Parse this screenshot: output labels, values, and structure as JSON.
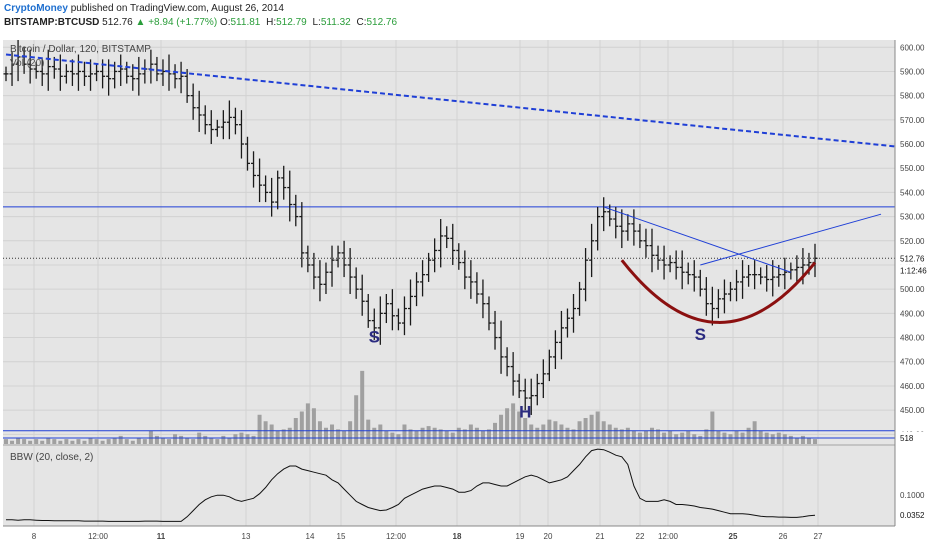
{
  "header": {
    "publisher": "CryptoMoney",
    "published_text": "published on TradingView.com, August 26, 2014",
    "symbol": "BITSTAMP:BTCUSD",
    "last": "512.76",
    "change": "+8.94 (+1.77%)",
    "ohlc": [
      {
        "key": "O:",
        "value": "511.81"
      },
      {
        "key": "H:",
        "value": "512.79"
      },
      {
        "key": "L:",
        "value": "511.32"
      },
      {
        "key": "C:",
        "value": "512.76"
      }
    ]
  },
  "colors": {
    "panel_bg": "#e5e5e5",
    "bars": "#1a1a1a",
    "trendline": "#1f3fd6",
    "cup": "#8b1010",
    "annotation": "#2b2b80",
    "volume": "#a0a0a0"
  },
  "chart_data": [
    {
      "type": "ohlc",
      "title": "Bitcoin / Dollar, 120, BITSTAMP",
      "legend": "Vol (20)",
      "x_tick_labels": [
        "8",
        "12:00",
        "11",
        "13",
        "14",
        "15",
        "12:00",
        "18",
        "19",
        "20",
        "21",
        "22",
        "12:00",
        "25",
        "26",
        "27"
      ],
      "y_tick_labels": [
        "600.00",
        "590.00",
        "580.00",
        "570.00",
        "560.00",
        "550.00",
        "540.00",
        "530.00",
        "520.00",
        "510.00",
        "500.00",
        "490.00",
        "480.00",
        "470.00",
        "460.00",
        "450.00",
        "440.00"
      ],
      "ylim": [
        436,
        603
      ],
      "price_label": "512.76",
      "countdown_label": "1:12:46",
      "volume_label": "518",
      "annotations": [
        {
          "text": "S",
          "x_index": 61,
          "y": 480
        },
        {
          "text": "H",
          "x_index": 86,
          "y": 449
        },
        {
          "text": "S",
          "x_index": 115,
          "y": 481
        }
      ],
      "close_series": [
        589,
        593,
        596,
        593,
        591,
        590,
        589,
        592,
        591,
        588,
        590,
        589,
        590,
        588,
        589,
        590,
        588,
        587,
        590,
        591,
        588,
        587,
        589,
        591,
        593,
        589,
        590,
        589,
        587,
        588,
        580,
        575,
        572,
        568,
        566,
        567,
        569,
        571,
        568,
        560,
        552,
        547,
        543,
        540,
        536,
        546,
        542,
        535,
        530,
        515,
        510,
        505,
        502,
        507,
        512,
        515,
        510,
        505,
        500,
        495,
        487,
        484,
        490,
        494,
        489,
        486,
        492,
        497,
        503,
        506,
        512,
        516,
        522,
        521,
        516,
        511,
        505,
        503,
        498,
        494,
        486,
        480,
        472,
        468,
        462,
        458,
        455,
        456,
        461,
        465,
        472,
        478,
        484,
        488,
        492,
        500,
        512,
        520,
        530,
        532,
        529,
        526,
        524,
        527,
        524,
        520,
        518,
        514,
        512,
        510,
        511,
        509,
        507,
        506,
        505,
        500,
        494,
        492,
        496,
        498,
        500,
        503,
        505,
        506,
        506,
        505,
        504,
        505,
        506,
        507,
        508,
        509,
        510,
        511,
        512.76
      ],
      "volume_series": [
        3,
        2,
        4,
        3,
        2,
        3,
        2,
        4,
        3,
        2,
        3,
        2,
        3,
        2,
        4,
        3,
        2,
        3,
        4,
        5,
        3,
        2,
        4,
        3,
        8,
        5,
        4,
        3,
        6,
        5,
        4,
        3,
        7,
        5,
        4,
        3,
        5,
        4,
        6,
        7,
        6,
        5,
        18,
        14,
        12,
        8,
        9,
        10,
        16,
        20,
        25,
        22,
        14,
        10,
        12,
        9,
        8,
        14,
        30,
        45,
        15,
        10,
        12,
        8,
        7,
        6,
        12,
        9,
        8,
        10,
        11,
        10,
        9,
        8,
        7,
        10,
        9,
        12,
        10,
        8,
        9,
        13,
        18,
        22,
        25,
        20,
        16,
        12,
        10,
        12,
        15,
        14,
        12,
        10,
        9,
        14,
        16,
        18,
        20,
        14,
        12,
        10,
        9,
        10,
        8,
        7,
        8,
        10,
        9,
        7,
        8,
        6,
        7,
        8,
        6,
        5,
        9,
        20,
        8,
        7,
        6,
        8,
        7,
        10,
        14,
        8,
        7,
        6,
        7,
        6,
        5,
        4,
        5,
        4,
        3
      ]
    },
    {
      "type": "line",
      "title": "BBW (20, close, 2)",
      "y_tick_labels": [
        "0.1000"
      ],
      "last_value_label": "0.0352",
      "ylim": [
        0,
        0.26
      ],
      "values": [
        0.02,
        0.02,
        0.019,
        0.02,
        0.02,
        0.019,
        0.018,
        0.018,
        0.017,
        0.017,
        0.017,
        0.017,
        0.017,
        0.016,
        0.016,
        0.016,
        0.016,
        0.015,
        0.015,
        0.015,
        0.015,
        0.015,
        0.015,
        0.016,
        0.016,
        0.016,
        0.015,
        0.015,
        0.015,
        0.015,
        0.03,
        0.05,
        0.07,
        0.085,
        0.095,
        0.1,
        0.1,
        0.095,
        0.085,
        0.08,
        0.085,
        0.09,
        0.105,
        0.125,
        0.15,
        0.17,
        0.185,
        0.195,
        0.195,
        0.185,
        0.18,
        0.175,
        0.17,
        0.165,
        0.15,
        0.14,
        0.12,
        0.1,
        0.08,
        0.07,
        0.06,
        0.055,
        0.05,
        0.052,
        0.06,
        0.07,
        0.09,
        0.1,
        0.11,
        0.12,
        0.125,
        0.13,
        0.13,
        0.125,
        0.12,
        0.11,
        0.11,
        0.115,
        0.13,
        0.14,
        0.14,
        0.135,
        0.13,
        0.13,
        0.14,
        0.15,
        0.16,
        0.165,
        0.16,
        0.15,
        0.14,
        0.145,
        0.15,
        0.16,
        0.18,
        0.2,
        0.225,
        0.245,
        0.25,
        0.248,
        0.24,
        0.23,
        0.225,
        0.2,
        0.13,
        0.09,
        0.08,
        0.08,
        0.08,
        0.085,
        0.08,
        0.07,
        0.07,
        0.068,
        0.065,
        0.06,
        0.058,
        0.055,
        0.05,
        0.045,
        0.04,
        0.04,
        0.04,
        0.038,
        0.035,
        0.032,
        0.03,
        0.03,
        0.029,
        0.029,
        0.028,
        0.028,
        0.03,
        0.033,
        0.0352
      ]
    }
  ]
}
